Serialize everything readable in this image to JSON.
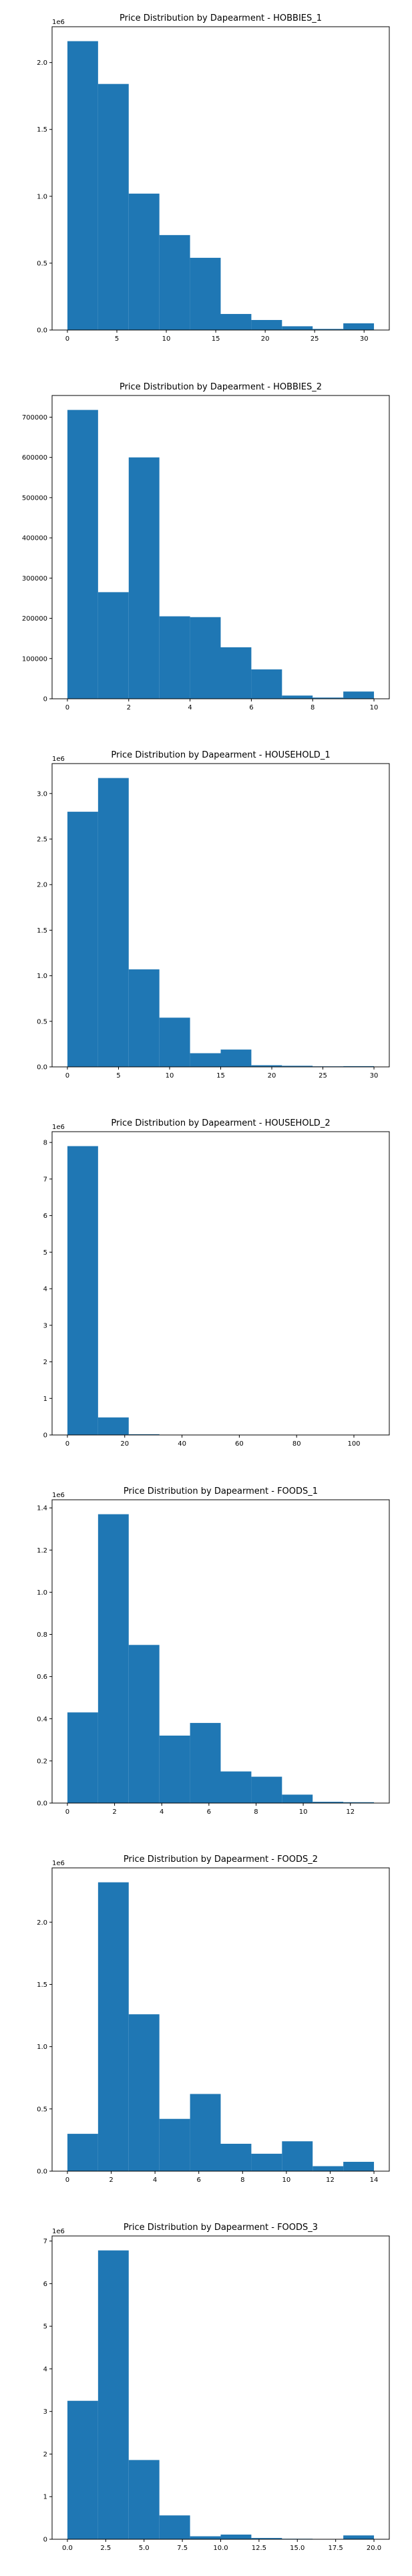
{
  "figure": {
    "colors": {
      "bar": "#1f77b4",
      "axis": "#000000",
      "background": "#ffffff"
    }
  },
  "chart_data": [
    {
      "type": "bar",
      "title": "Price Distribution by Dapearment - HOBBIES_1",
      "xlabel": "",
      "ylabel": "",
      "y_offset_label": "1e6",
      "grid": false,
      "legend": "none",
      "bin_edges": [
        0.0,
        3.1,
        6.2,
        9.3,
        12.4,
        15.5,
        18.6,
        21.7,
        24.8,
        27.9,
        31.0
      ],
      "values": [
        2160000,
        1840000,
        1020000,
        710000,
        540000,
        120000,
        75000,
        28000,
        8000,
        50000
      ],
      "xlim": [
        -1.55,
        32.55
      ],
      "ylim": [
        0,
        2268000
      ],
      "xticks": [
        0,
        5,
        10,
        15,
        20,
        25,
        30
      ],
      "xtick_labels": [
        "0",
        "5",
        "10",
        "15",
        "20",
        "25",
        "30"
      ],
      "yticks": [
        0,
        500000,
        1000000,
        1500000,
        2000000
      ],
      "ytick_labels": [
        "0.0",
        "0.5",
        "1.0",
        "1.5",
        "2.0"
      ]
    },
    {
      "type": "bar",
      "title": "Price Distribution by Dapearment - HOBBIES_2",
      "xlabel": "",
      "ylabel": "",
      "y_offset_label": "",
      "grid": false,
      "legend": "none",
      "bin_edges": [
        0.0,
        1.0,
        2.0,
        3.0,
        4.0,
        5.0,
        6.0,
        7.0,
        8.0,
        9.0,
        10.0
      ],
      "values": [
        718000,
        265000,
        600000,
        205000,
        203000,
        128000,
        73000,
        8000,
        3000,
        18000
      ],
      "xlim": [
        -0.5,
        10.5
      ],
      "ylim": [
        0,
        753900
      ],
      "xticks": [
        0,
        2,
        4,
        6,
        8,
        10
      ],
      "xtick_labels": [
        "0",
        "2",
        "4",
        "6",
        "8",
        "10"
      ],
      "yticks": [
        0,
        100000,
        200000,
        300000,
        400000,
        500000,
        600000,
        700000
      ],
      "ytick_labels": [
        "0",
        "100000",
        "200000",
        "300000",
        "400000",
        "500000",
        "600000",
        "700000"
      ]
    },
    {
      "type": "bar",
      "title": "Price Distribution by Dapearment - HOUSEHOLD_1",
      "xlabel": "",
      "ylabel": "",
      "y_offset_label": "1e6",
      "grid": false,
      "legend": "none",
      "bin_edges": [
        0.0,
        3.0,
        6.0,
        9.0,
        12.0,
        15.0,
        18.0,
        21.0,
        24.0,
        27.0,
        30.0
      ],
      "values": [
        2800000,
        3170000,
        1070000,
        540000,
        150000,
        190000,
        18000,
        12000,
        6000,
        8000
      ],
      "xlim": [
        -1.5,
        31.5
      ],
      "ylim": [
        0,
        3328500
      ],
      "xticks": [
        0,
        5,
        10,
        15,
        20,
        25,
        30
      ],
      "xtick_labels": [
        "0",
        "5",
        "10",
        "15",
        "20",
        "25",
        "30"
      ],
      "yticks": [
        0,
        500000,
        1000000,
        1500000,
        2000000,
        2500000,
        3000000
      ],
      "ytick_labels": [
        "0.0",
        "0.5",
        "1.0",
        "1.5",
        "2.0",
        "2.5",
        "3.0"
      ]
    },
    {
      "type": "bar",
      "title": "Price Distribution by Dapearment - HOUSEHOLD_2",
      "xlabel": "",
      "ylabel": "",
      "y_offset_label": "1e6",
      "grid": false,
      "legend": "none",
      "bin_edges": [
        0.0,
        10.7,
        21.4,
        32.1,
        42.8,
        53.5,
        64.2,
        74.9,
        85.6,
        96.3,
        107.0
      ],
      "values": [
        7900000,
        480000,
        20000,
        8000,
        4000,
        2000,
        1500,
        1000,
        800,
        500
      ],
      "xlim": [
        -5.35,
        112.35
      ],
      "ylim": [
        0,
        8295000
      ],
      "xticks": [
        0,
        20,
        40,
        60,
        80,
        100
      ],
      "xtick_labels": [
        "0",
        "20",
        "40",
        "60",
        "80",
        "100"
      ],
      "yticks": [
        0,
        1000000,
        2000000,
        3000000,
        4000000,
        5000000,
        6000000,
        7000000,
        8000000
      ],
      "ytick_labels": [
        "0",
        "1",
        "2",
        "3",
        "4",
        "5",
        "6",
        "7",
        "8"
      ]
    },
    {
      "type": "bar",
      "title": "Price Distribution by Dapearment - FOODS_1",
      "xlabel": "",
      "ylabel": "",
      "y_offset_label": "1e6",
      "grid": false,
      "legend": "none",
      "bin_edges": [
        0.0,
        1.3,
        2.6,
        3.9,
        5.2,
        6.5,
        7.8,
        9.1,
        10.4,
        11.7,
        13.0
      ],
      "values": [
        430000,
        1370000,
        750000,
        320000,
        380000,
        150000,
        125000,
        40000,
        6000,
        4000
      ],
      "xlim": [
        -0.65,
        13.65
      ],
      "ylim": [
        0,
        1438500
      ],
      "xticks": [
        0,
        2,
        4,
        6,
        8,
        10,
        12
      ],
      "xtick_labels": [
        "0",
        "2",
        "4",
        "6",
        "8",
        "10",
        "12"
      ],
      "yticks": [
        0,
        200000,
        400000,
        600000,
        800000,
        1000000,
        1200000,
        1400000
      ],
      "ytick_labels": [
        "0.0",
        "0.2",
        "0.4",
        "0.6",
        "0.8",
        "1.0",
        "1.2",
        "1.4"
      ]
    },
    {
      "type": "bar",
      "title": "Price Distribution by Dapearment - FOODS_2",
      "xlabel": "",
      "ylabel": "",
      "y_offset_label": "1e6",
      "grid": false,
      "legend": "none",
      "bin_edges": [
        0.0,
        1.4,
        2.8,
        4.2,
        5.6,
        7.0,
        8.4,
        9.8,
        11.2,
        12.6,
        14.0
      ],
      "values": [
        300000,
        2320000,
        1260000,
        420000,
        620000,
        220000,
        140000,
        240000,
        40000,
        75000
      ],
      "xlim": [
        -0.7,
        14.7
      ],
      "ylim": [
        0,
        2436000
      ],
      "xticks": [
        0,
        2,
        4,
        6,
        8,
        10,
        12,
        14
      ],
      "xtick_labels": [
        "0",
        "2",
        "4",
        "6",
        "8",
        "10",
        "12",
        "14"
      ],
      "yticks": [
        0,
        500000,
        1000000,
        1500000,
        2000000
      ],
      "ytick_labels": [
        "0.0",
        "0.5",
        "1.0",
        "1.5",
        "2.0"
      ]
    },
    {
      "type": "bar",
      "title": "Price Distribution by Dapearment - FOODS_3",
      "xlabel": "",
      "ylabel": "",
      "y_offset_label": "1e6",
      "grid": false,
      "legend": "none",
      "bin_edges": [
        0.0,
        2.0,
        4.0,
        6.0,
        8.0,
        10.0,
        12.0,
        14.0,
        16.0,
        18.0,
        20.0
      ],
      "values": [
        3250000,
        6780000,
        1860000,
        560000,
        70000,
        110000,
        30000,
        12000,
        8000,
        90000
      ],
      "xlim": [
        -1.0,
        21.0
      ],
      "ylim": [
        0,
        7119000
      ],
      "xticks": [
        0,
        2.5,
        5,
        7.5,
        10,
        12.5,
        15,
        17.5,
        20
      ],
      "xtick_labels": [
        "0.0",
        "2.5",
        "5.0",
        "7.5",
        "10.0",
        "12.5",
        "15.0",
        "17.5",
        "20.0"
      ],
      "yticks": [
        0,
        1000000,
        2000000,
        3000000,
        4000000,
        5000000,
        6000000,
        7000000
      ],
      "ytick_labels": [
        "0",
        "1",
        "2",
        "3",
        "4",
        "5",
        "6",
        "7"
      ]
    }
  ]
}
